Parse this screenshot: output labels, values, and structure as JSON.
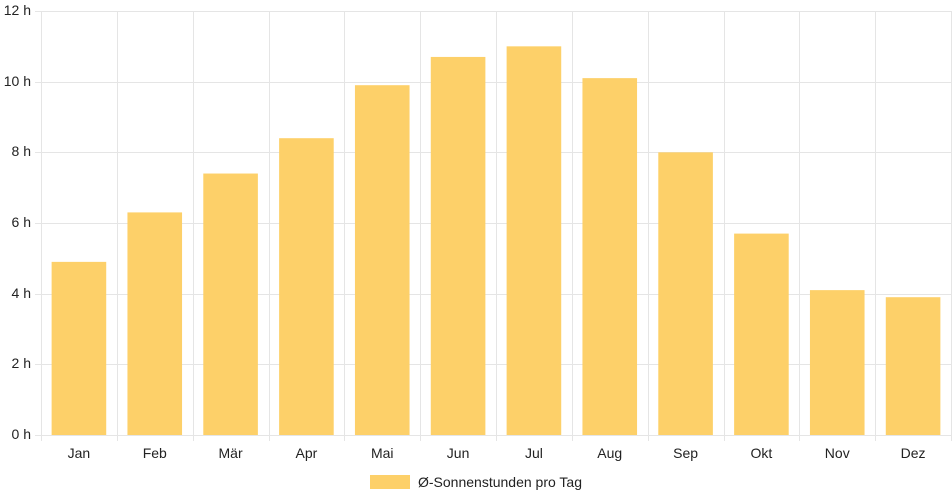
{
  "chart_data": {
    "type": "bar",
    "categories": [
      "Jan",
      "Feb",
      "Mär",
      "Apr",
      "Mai",
      "Jun",
      "Jul",
      "Aug",
      "Sep",
      "Okt",
      "Nov",
      "Dez"
    ],
    "series": [
      {
        "name": "Ø-Sonnenstunden pro Tag",
        "values": [
          4.9,
          6.3,
          7.4,
          8.4,
          9.9,
          10.7,
          11.0,
          10.1,
          8.0,
          5.7,
          4.1,
          3.9
        ]
      }
    ],
    "ylim": [
      0,
      12
    ],
    "yticks": [
      0,
      2,
      4,
      6,
      8,
      10,
      12
    ],
    "ytick_labels": [
      "0 h",
      "2 h",
      "4 h",
      "6 h",
      "8 h",
      "10 h",
      "12 h"
    ],
    "grid": true,
    "legend_position": "bottom-center",
    "bar_color": "#fdd069",
    "grid_color": "#e5e5e5"
  }
}
